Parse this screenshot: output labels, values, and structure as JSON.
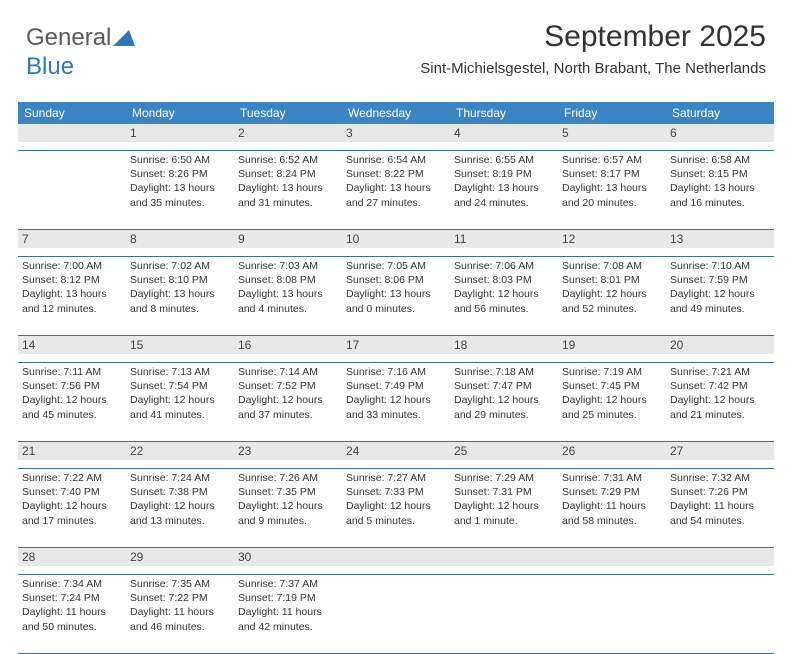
{
  "logo": {
    "text1": "General",
    "text2": "Blue"
  },
  "title": "September 2025",
  "subtitle": "Sint-Michielsgestel, North Brabant, The Netherlands",
  "colors": {
    "header_bg": "#3a84c4",
    "header_fg": "#ffffff",
    "daynum_bg": "#e8e8e8",
    "border": "#3a6fa0",
    "logo_gray": "#5a5a5a",
    "logo_blue": "#2f77bb"
  },
  "day_names": [
    "Sunday",
    "Monday",
    "Tuesday",
    "Wednesday",
    "Thursday",
    "Friday",
    "Saturday"
  ],
  "weeks": [
    [
      {
        "n": "",
        "sr": "",
        "ss": "",
        "dl": ""
      },
      {
        "n": "1",
        "sr": "Sunrise: 6:50 AM",
        "ss": "Sunset: 8:26 PM",
        "dl": "Daylight: 13 hours and 35 minutes."
      },
      {
        "n": "2",
        "sr": "Sunrise: 6:52 AM",
        "ss": "Sunset: 8:24 PM",
        "dl": "Daylight: 13 hours and 31 minutes."
      },
      {
        "n": "3",
        "sr": "Sunrise: 6:54 AM",
        "ss": "Sunset: 8:22 PM",
        "dl": "Daylight: 13 hours and 27 minutes."
      },
      {
        "n": "4",
        "sr": "Sunrise: 6:55 AM",
        "ss": "Sunset: 8:19 PM",
        "dl": "Daylight: 13 hours and 24 minutes."
      },
      {
        "n": "5",
        "sr": "Sunrise: 6:57 AM",
        "ss": "Sunset: 8:17 PM",
        "dl": "Daylight: 13 hours and 20 minutes."
      },
      {
        "n": "6",
        "sr": "Sunrise: 6:58 AM",
        "ss": "Sunset: 8:15 PM",
        "dl": "Daylight: 13 hours and 16 minutes."
      }
    ],
    [
      {
        "n": "7",
        "sr": "Sunrise: 7:00 AM",
        "ss": "Sunset: 8:12 PM",
        "dl": "Daylight: 13 hours and 12 minutes."
      },
      {
        "n": "8",
        "sr": "Sunrise: 7:02 AM",
        "ss": "Sunset: 8:10 PM",
        "dl": "Daylight: 13 hours and 8 minutes."
      },
      {
        "n": "9",
        "sr": "Sunrise: 7:03 AM",
        "ss": "Sunset: 8:08 PM",
        "dl": "Daylight: 13 hours and 4 minutes."
      },
      {
        "n": "10",
        "sr": "Sunrise: 7:05 AM",
        "ss": "Sunset: 8:06 PM",
        "dl": "Daylight: 13 hours and 0 minutes."
      },
      {
        "n": "11",
        "sr": "Sunrise: 7:06 AM",
        "ss": "Sunset: 8:03 PM",
        "dl": "Daylight: 12 hours and 56 minutes."
      },
      {
        "n": "12",
        "sr": "Sunrise: 7:08 AM",
        "ss": "Sunset: 8:01 PM",
        "dl": "Daylight: 12 hours and 52 minutes."
      },
      {
        "n": "13",
        "sr": "Sunrise: 7:10 AM",
        "ss": "Sunset: 7:59 PM",
        "dl": "Daylight: 12 hours and 49 minutes."
      }
    ],
    [
      {
        "n": "14",
        "sr": "Sunrise: 7:11 AM",
        "ss": "Sunset: 7:56 PM",
        "dl": "Daylight: 12 hours and 45 minutes."
      },
      {
        "n": "15",
        "sr": "Sunrise: 7:13 AM",
        "ss": "Sunset: 7:54 PM",
        "dl": "Daylight: 12 hours and 41 minutes."
      },
      {
        "n": "16",
        "sr": "Sunrise: 7:14 AM",
        "ss": "Sunset: 7:52 PM",
        "dl": "Daylight: 12 hours and 37 minutes."
      },
      {
        "n": "17",
        "sr": "Sunrise: 7:16 AM",
        "ss": "Sunset: 7:49 PM",
        "dl": "Daylight: 12 hours and 33 minutes."
      },
      {
        "n": "18",
        "sr": "Sunrise: 7:18 AM",
        "ss": "Sunset: 7:47 PM",
        "dl": "Daylight: 12 hours and 29 minutes."
      },
      {
        "n": "19",
        "sr": "Sunrise: 7:19 AM",
        "ss": "Sunset: 7:45 PM",
        "dl": "Daylight: 12 hours and 25 minutes."
      },
      {
        "n": "20",
        "sr": "Sunrise: 7:21 AM",
        "ss": "Sunset: 7:42 PM",
        "dl": "Daylight: 12 hours and 21 minutes."
      }
    ],
    [
      {
        "n": "21",
        "sr": "Sunrise: 7:22 AM",
        "ss": "Sunset: 7:40 PM",
        "dl": "Daylight: 12 hours and 17 minutes."
      },
      {
        "n": "22",
        "sr": "Sunrise: 7:24 AM",
        "ss": "Sunset: 7:38 PM",
        "dl": "Daylight: 12 hours and 13 minutes."
      },
      {
        "n": "23",
        "sr": "Sunrise: 7:26 AM",
        "ss": "Sunset: 7:35 PM",
        "dl": "Daylight: 12 hours and 9 minutes."
      },
      {
        "n": "24",
        "sr": "Sunrise: 7:27 AM",
        "ss": "Sunset: 7:33 PM",
        "dl": "Daylight: 12 hours and 5 minutes."
      },
      {
        "n": "25",
        "sr": "Sunrise: 7:29 AM",
        "ss": "Sunset: 7:31 PM",
        "dl": "Daylight: 12 hours and 1 minute."
      },
      {
        "n": "26",
        "sr": "Sunrise: 7:31 AM",
        "ss": "Sunset: 7:29 PM",
        "dl": "Daylight: 11 hours and 58 minutes."
      },
      {
        "n": "27",
        "sr": "Sunrise: 7:32 AM",
        "ss": "Sunset: 7:26 PM",
        "dl": "Daylight: 11 hours and 54 minutes."
      }
    ],
    [
      {
        "n": "28",
        "sr": "Sunrise: 7:34 AM",
        "ss": "Sunset: 7:24 PM",
        "dl": "Daylight: 11 hours and 50 minutes."
      },
      {
        "n": "29",
        "sr": "Sunrise: 7:35 AM",
        "ss": "Sunset: 7:22 PM",
        "dl": "Daylight: 11 hours and 46 minutes."
      },
      {
        "n": "30",
        "sr": "Sunrise: 7:37 AM",
        "ss": "Sunset: 7:19 PM",
        "dl": "Daylight: 11 hours and 42 minutes."
      },
      {
        "n": "",
        "sr": "",
        "ss": "",
        "dl": ""
      },
      {
        "n": "",
        "sr": "",
        "ss": "",
        "dl": ""
      },
      {
        "n": "",
        "sr": "",
        "ss": "",
        "dl": ""
      },
      {
        "n": "",
        "sr": "",
        "ss": "",
        "dl": ""
      }
    ]
  ]
}
